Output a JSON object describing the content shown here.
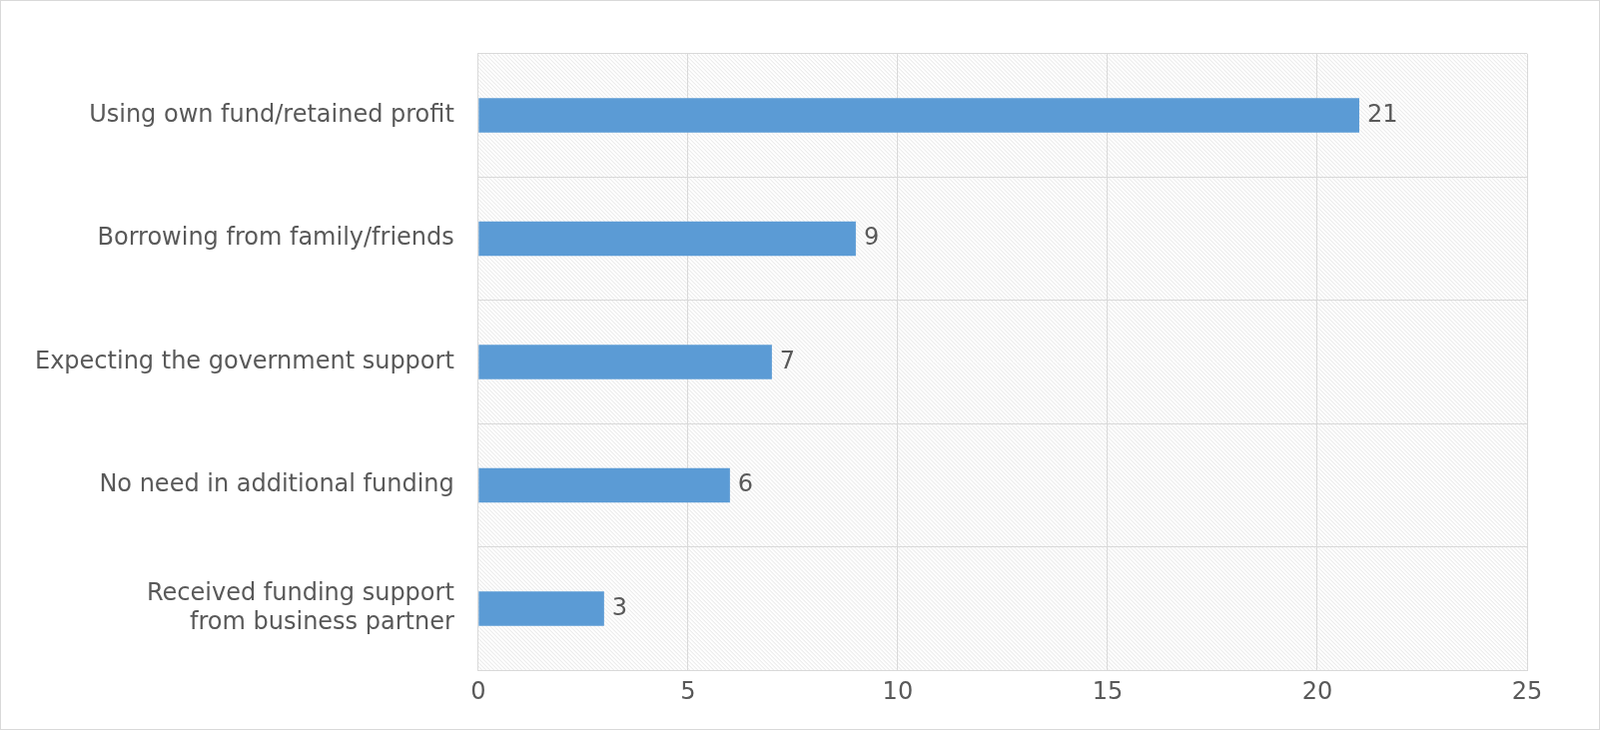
{
  "chart_data": {
    "type": "bar",
    "orientation": "horizontal",
    "categories": [
      "Using own fund/retained profit",
      "Borrowing from family/friends",
      "Expecting the government support",
      "No need in additional funding",
      [
        "Received funding support",
        "from business partner"
      ]
    ],
    "values": [
      21,
      9,
      7,
      6,
      3
    ],
    "color": "#5b9bd5",
    "xlim": [
      0,
      25
    ],
    "xticks": [
      0,
      5,
      10,
      15,
      20,
      25
    ],
    "grid": true,
    "data_labels": true
  }
}
